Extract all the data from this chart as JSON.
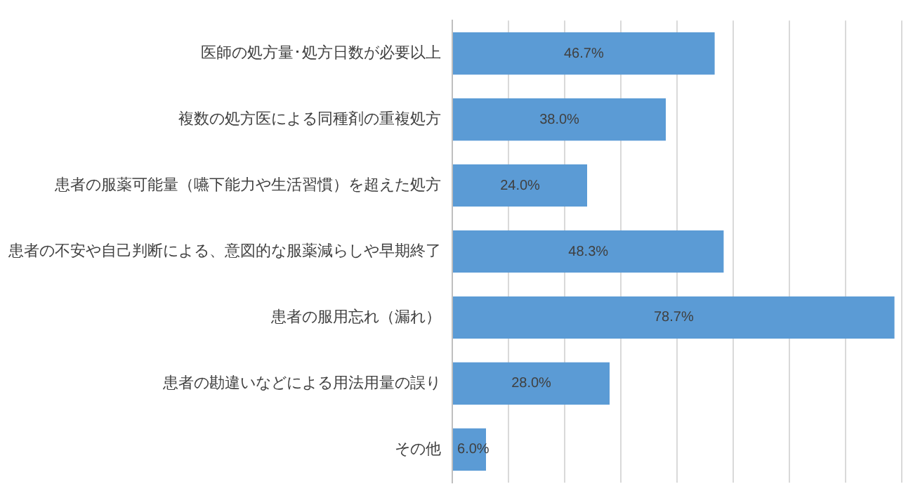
{
  "chart_data": {
    "type": "bar",
    "orientation": "horizontal",
    "categories": [
      "医師の処方量･処方日数が必要以上",
      "複数の処方医による同種剤の重複処方",
      "患者の服薬可能量（嚥下能力や生活習慣）を超えた処方",
      "患者の不安や自己判断による、意図的な服薬減らしや早期終了",
      "患者の服用忘れ（漏れ）",
      "患者の勘違いなどによる用法用量の誤り",
      "その他"
    ],
    "values": [
      46.7,
      38.0,
      24.0,
      48.3,
      78.7,
      28.0,
      6.0
    ],
    "value_labels": [
      "46.7%",
      "38.0%",
      "24.0%",
      "48.3%",
      "78.7%",
      "28.0%",
      "6.0%"
    ],
    "color": "#5b9bd5",
    "xlim": [
      0,
      80
    ],
    "xticks": [
      {
        "value": 0,
        "label": null
      },
      {
        "value": 10,
        "label": null
      },
      {
        "value": 20,
        "label": null
      },
      {
        "value": 30,
        "label": null
      },
      {
        "value": 40,
        "label": null
      },
      {
        "value": 50,
        "label": null
      },
      {
        "value": 60,
        "label": null
      },
      {
        "value": 70,
        "label": null
      },
      {
        "value": 80,
        "label": null
      }
    ],
    "tick_labels": "y",
    "grid": "x",
    "legend": false
  }
}
